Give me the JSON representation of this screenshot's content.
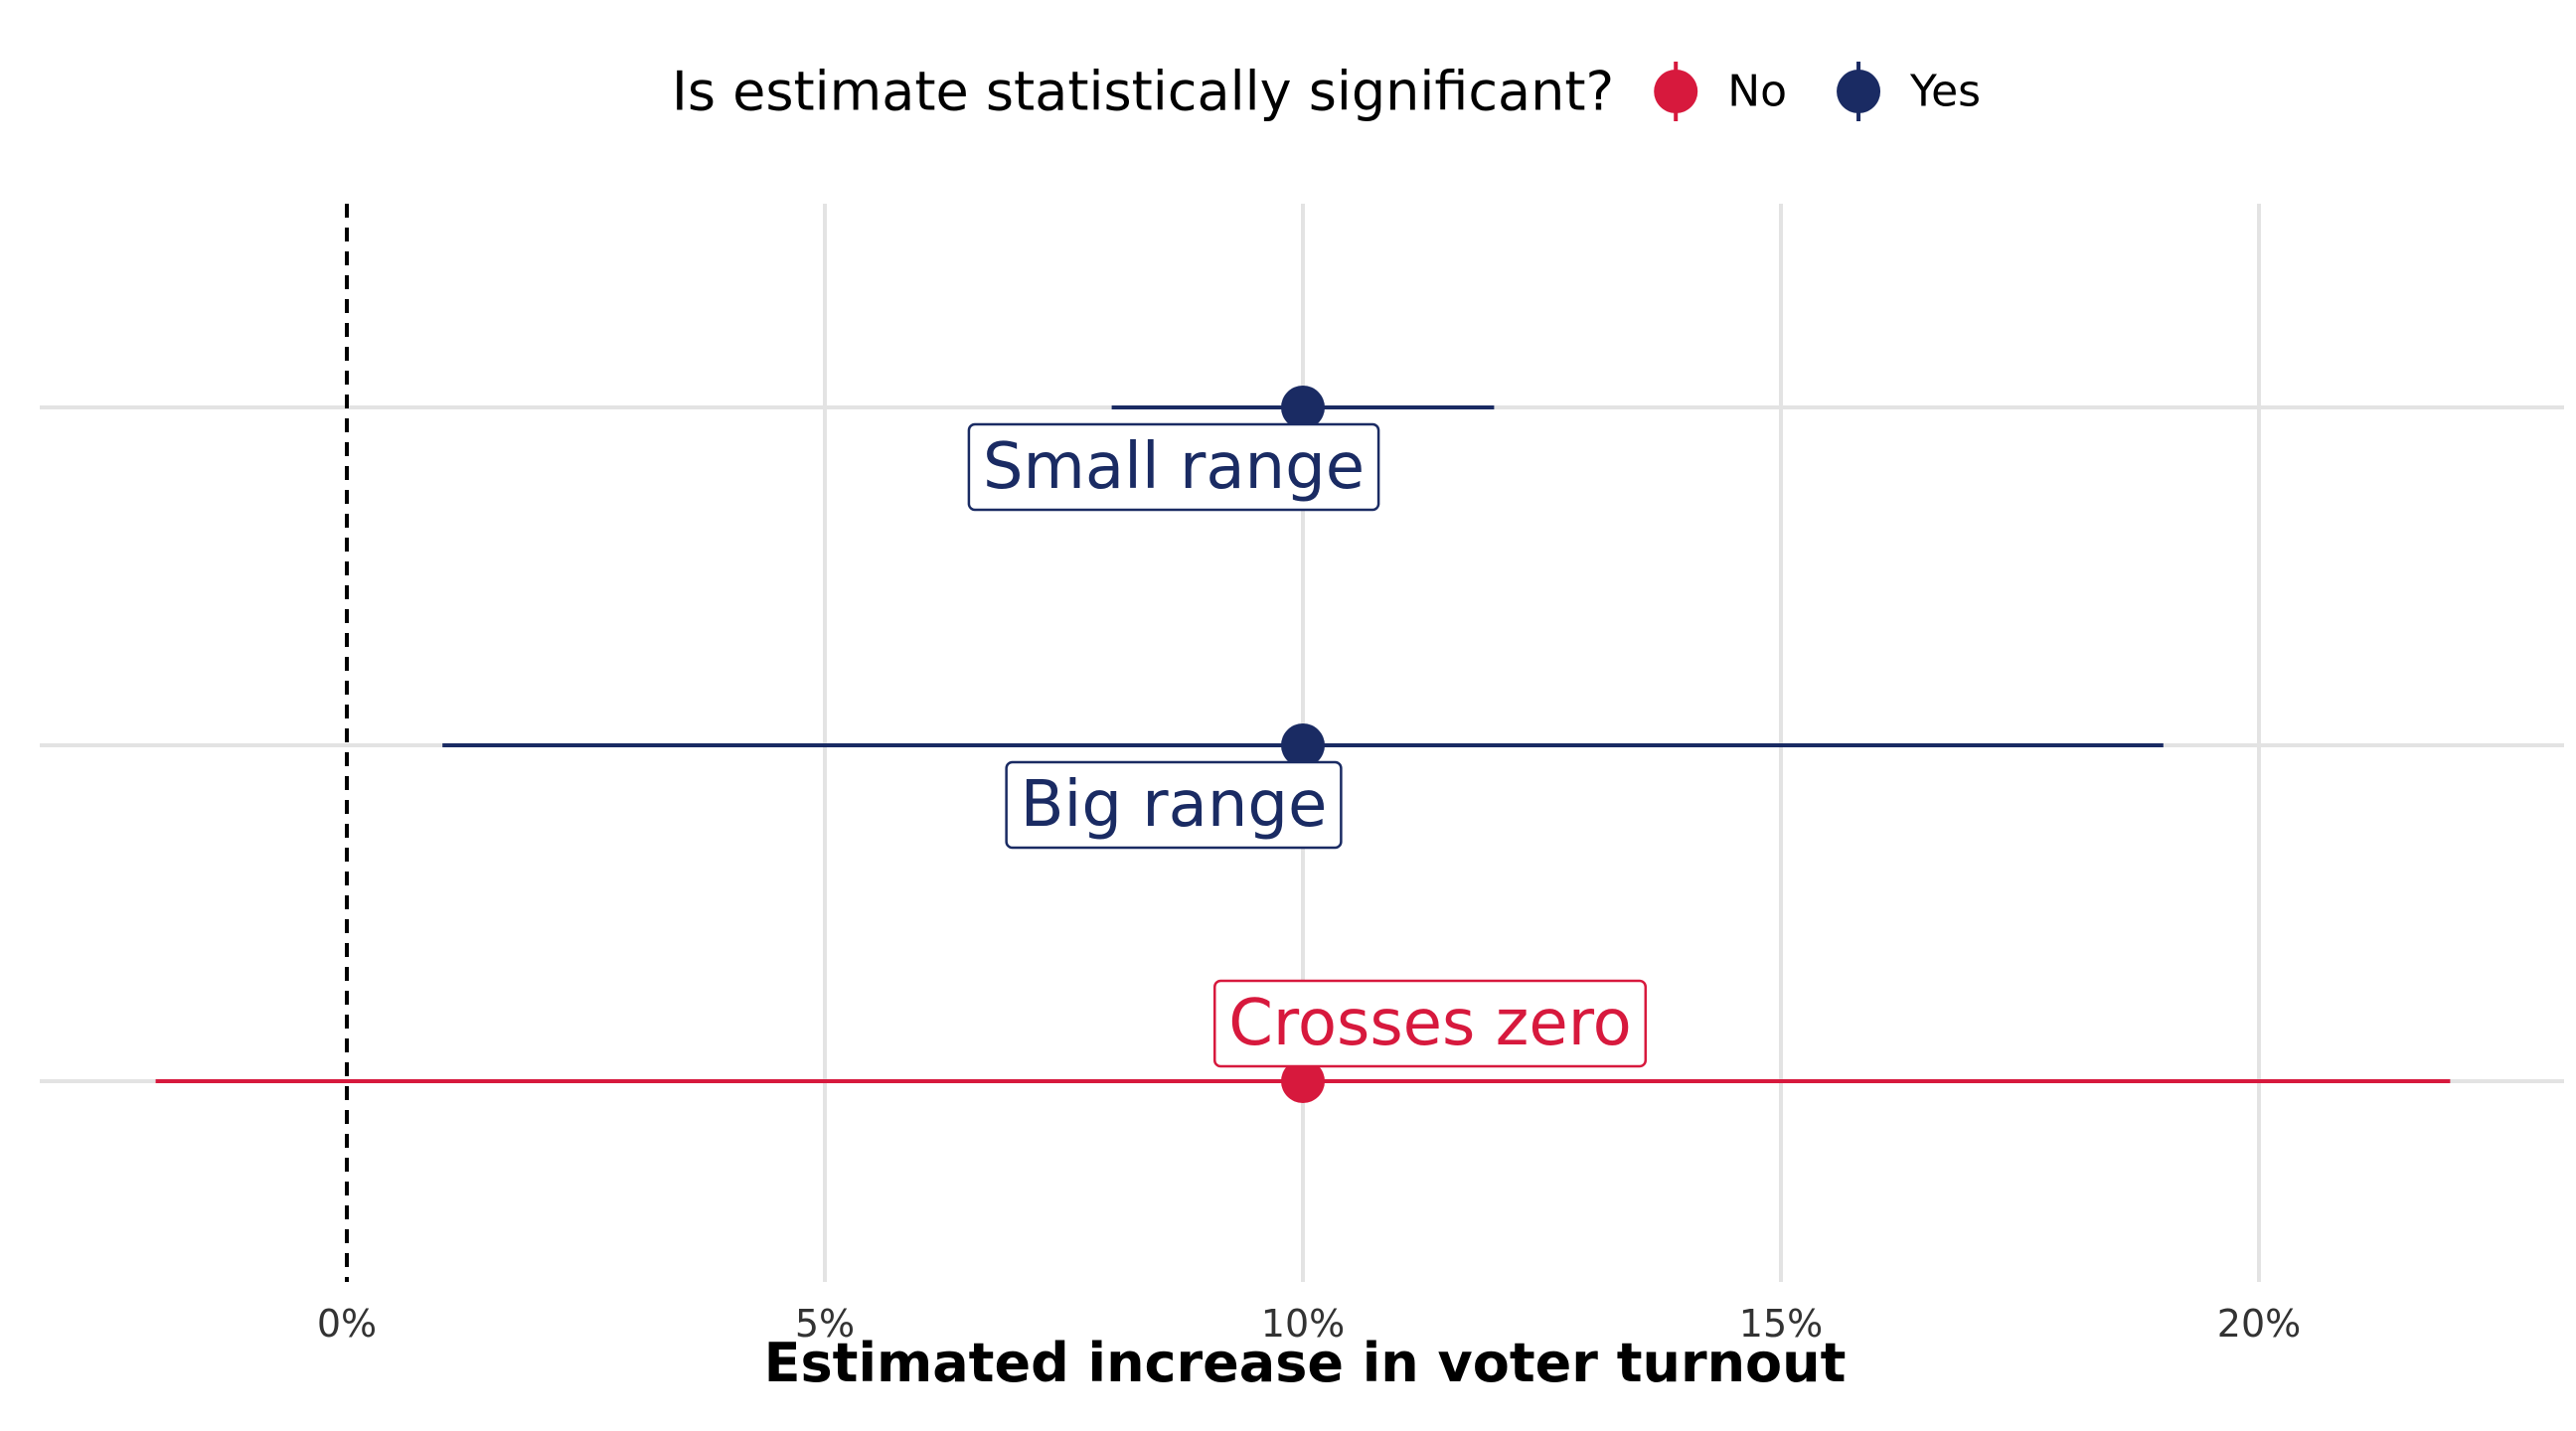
{
  "chart_data": {
    "type": "pointrange",
    "title": "",
    "xlabel": "Estimated increase in voter turnout",
    "ylabel": "",
    "xlim": [
      -3,
      23
    ],
    "x_ticks": [
      0,
      5,
      10,
      15,
      20
    ],
    "x_tick_labels": [
      "0%",
      "5%",
      "10%",
      "15%",
      "20%"
    ],
    "reference_line": {
      "x": 0,
      "style": "dashed"
    },
    "grid": true,
    "legend": {
      "title": "Is estimate statistically significant?",
      "position": "top",
      "entries": [
        {
          "label": "No",
          "color": "#D7193D"
        },
        {
          "label": "Yes",
          "color": "#1A2B63"
        }
      ]
    },
    "estimates": [
      {
        "label": "Small range",
        "estimate": 10,
        "low": 8,
        "high": 12,
        "significant": "Yes",
        "label_position": "below"
      },
      {
        "label": "Big range",
        "estimate": 10,
        "low": 1,
        "high": 19,
        "significant": "Yes",
        "label_position": "below"
      },
      {
        "label": "Crosses zero",
        "estimate": 10,
        "low": -2,
        "high": 22,
        "significant": "No",
        "label_position": "above"
      }
    ]
  }
}
